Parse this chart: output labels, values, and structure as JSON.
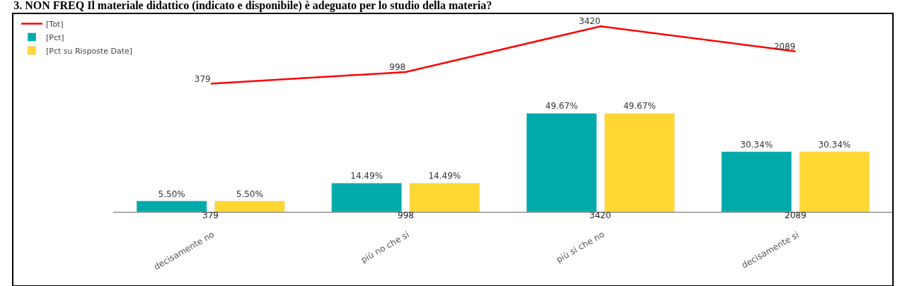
{
  "chart_data": {
    "type": "bar",
    "title": "3. NON FREQ Il materiale didattico (indicato e disponibile) è adeguato per lo studio della materia?",
    "categories": [
      "decisamente no",
      "più no che si",
      "più si che no",
      "decisamente si"
    ],
    "series": [
      {
        "name": "[Tot]",
        "type": "line",
        "axis": "y2",
        "color": "#ff0000",
        "values": [
          379,
          998,
          3420,
          2089
        ],
        "value_labels": [
          "379",
          "998",
          "3420",
          "2089"
        ],
        "marker": "none"
      },
      {
        "name": "[Pct]",
        "color": "#00aaaa",
        "values": [
          5.5,
          14.49,
          49.67,
          30.34
        ],
        "value_labels": [
          "5.50%",
          "14.49%",
          "49.67%",
          "30.34%"
        ]
      },
      {
        "name": "[Pct su Risposte Date]",
        "color": "#ffd733",
        "values": [
          5.5,
          14.49,
          49.67,
          30.34
        ],
        "value_labels": [
          "5.50%",
          "14.49%",
          "49.67%",
          "30.34%"
        ]
      }
    ],
    "ylim": [
      0,
      100
    ],
    "y2lim": [
      -6400,
      4100
    ],
    "legend": "top left",
    "tick_labels": false
  }
}
